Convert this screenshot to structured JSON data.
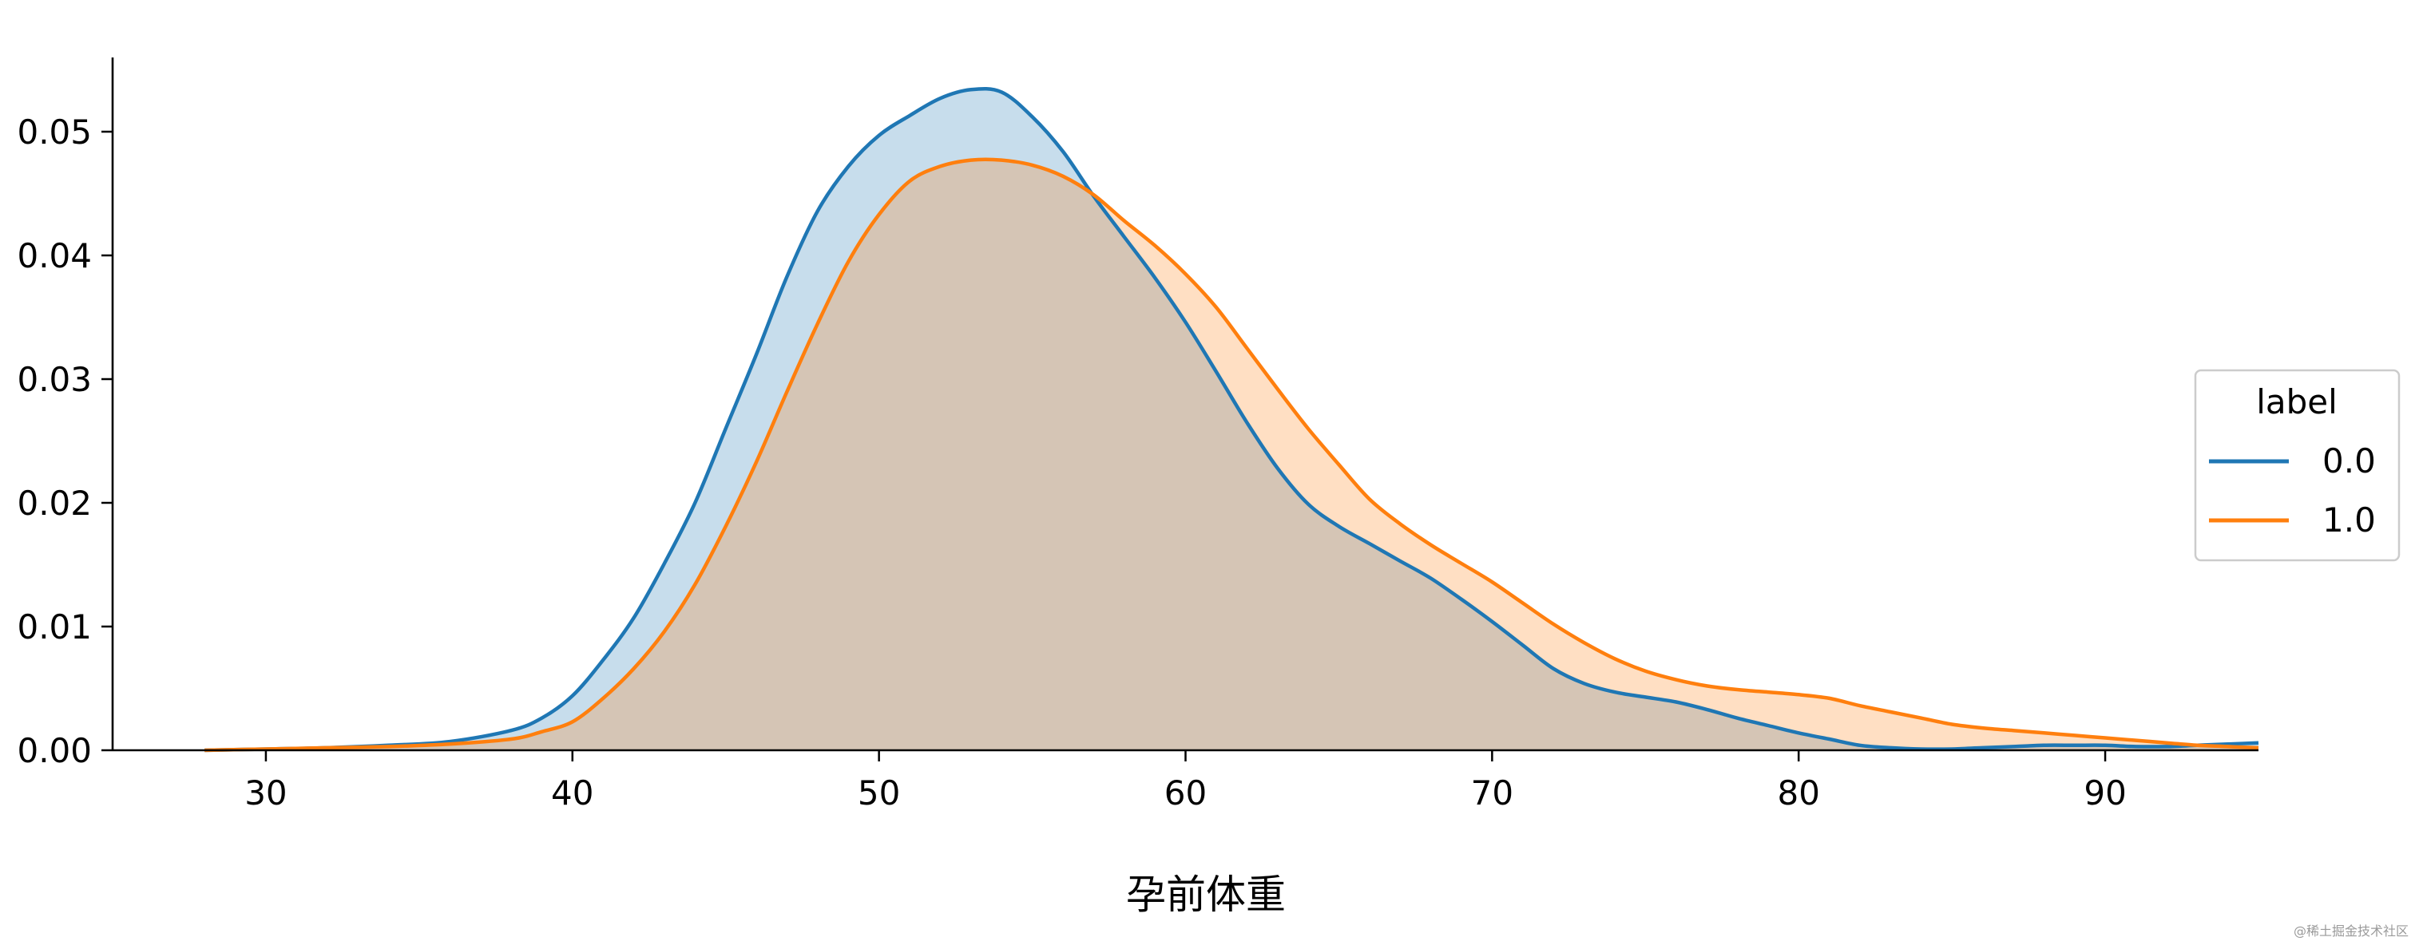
{
  "chart_data": {
    "type": "area",
    "title": "",
    "xlabel": "孕前体重",
    "ylabel": "",
    "xlim": [
      25,
      95
    ],
    "ylim": [
      0,
      0.056
    ],
    "x_ticks": [
      "30",
      "40",
      "50",
      "60",
      "70",
      "80",
      "90"
    ],
    "y_ticks": [
      "0.00",
      "0.01",
      "0.02",
      "0.03",
      "0.04",
      "0.05"
    ],
    "grid": false,
    "legend": {
      "title": "label",
      "placement": "right"
    },
    "series": [
      {
        "name": "0.0",
        "color": "#1f77b4",
        "fill_color": "#c5d9ea",
        "x": [
          28,
          30,
          32,
          34,
          36,
          38,
          39,
          40,
          41,
          42,
          43,
          44,
          45,
          46,
          47,
          48,
          49,
          50,
          51,
          52,
          53,
          54,
          55,
          56,
          57,
          58,
          59,
          60,
          61,
          62,
          63,
          64,
          65,
          66,
          67,
          68,
          69,
          70,
          71,
          72,
          73,
          74,
          75,
          76,
          77,
          78,
          79,
          80,
          81,
          82,
          83,
          84,
          85,
          86,
          87,
          88,
          89,
          90,
          91,
          92,
          93,
          94,
          95
        ],
        "values": [
          0.0,
          0.0001,
          0.0002,
          0.0004,
          0.0007,
          0.0016,
          0.0026,
          0.0044,
          0.0073,
          0.0107,
          0.0151,
          0.02,
          0.026,
          0.032,
          0.0383,
          0.0436,
          0.0472,
          0.0497,
          0.0513,
          0.0527,
          0.0534,
          0.0532,
          0.0512,
          0.0484,
          0.0448,
          0.0415,
          0.0382,
          0.0346,
          0.0306,
          0.0265,
          0.0228,
          0.0199,
          0.0181,
          0.0167,
          0.0153,
          0.0139,
          0.0122,
          0.0104,
          0.0085,
          0.0066,
          0.0054,
          0.0047,
          0.0043,
          0.0039,
          0.0033,
          0.0026,
          0.002,
          0.0014,
          0.0009,
          0.0004,
          0.0002,
          0.0001,
          0.0001,
          0.0002,
          0.0003,
          0.0004,
          0.0004,
          0.0004,
          0.0003,
          0.0003,
          0.0004,
          0.0005,
          0.0006
        ]
      },
      {
        "name": "1.0",
        "color": "#ff7f0e",
        "fill_color": "#ffd6b3",
        "x": [
          28,
          30,
          32,
          34,
          36,
          38,
          39,
          40,
          41,
          42,
          43,
          44,
          45,
          46,
          47,
          48,
          49,
          50,
          51,
          52,
          53,
          54,
          55,
          56,
          57,
          58,
          59,
          60,
          61,
          62,
          63,
          64,
          65,
          66,
          67,
          68,
          69,
          70,
          71,
          72,
          73,
          74,
          75,
          76,
          77,
          78,
          79,
          80,
          81,
          82,
          83,
          84,
          85,
          86,
          87,
          88,
          89,
          90,
          91,
          92,
          93,
          94,
          95
        ],
        "values": [
          0.0,
          0.0001,
          0.0002,
          0.0003,
          0.0005,
          0.0009,
          0.0015,
          0.0023,
          0.0042,
          0.0066,
          0.0096,
          0.0134,
          0.0181,
          0.0233,
          0.029,
          0.0345,
          0.0395,
          0.0433,
          0.046,
          0.0472,
          0.0477,
          0.0477,
          0.0473,
          0.0464,
          0.0449,
          0.0428,
          0.0408,
          0.0385,
          0.0358,
          0.0325,
          0.0292,
          0.026,
          0.0231,
          0.0203,
          0.0183,
          0.0166,
          0.0151,
          0.0136,
          0.0119,
          0.0102,
          0.0087,
          0.0074,
          0.0064,
          0.0057,
          0.0052,
          0.0049,
          0.0047,
          0.0045,
          0.0042,
          0.0036,
          0.0031,
          0.0026,
          0.0021,
          0.0018,
          0.0016,
          0.0014,
          0.0012,
          0.001,
          0.0008,
          0.0006,
          0.0004,
          0.0003,
          0.0002
        ]
      }
    ]
  },
  "watermark": "@稀土掘金技术社区"
}
